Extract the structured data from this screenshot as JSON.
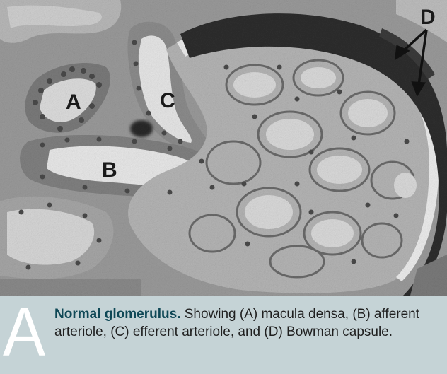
{
  "micrograph": {
    "labels": {
      "a": "A",
      "b": "B",
      "c": "C",
      "d": "D"
    },
    "colors": {
      "background": "#9a9a9a",
      "lumen": "#ececec",
      "tissue": "#6f6f6f",
      "capsule": "#2e2e2e"
    }
  },
  "caption": {
    "panel_letter": "A",
    "title": "Normal glomerulus.",
    "body": " Showing (A) macula densa, (B) afferent arteriole, (C) efferent arteriole, and (D) Bowman capsule.",
    "panel_color": "#c5d3d6",
    "title_color": "#0f4856"
  }
}
